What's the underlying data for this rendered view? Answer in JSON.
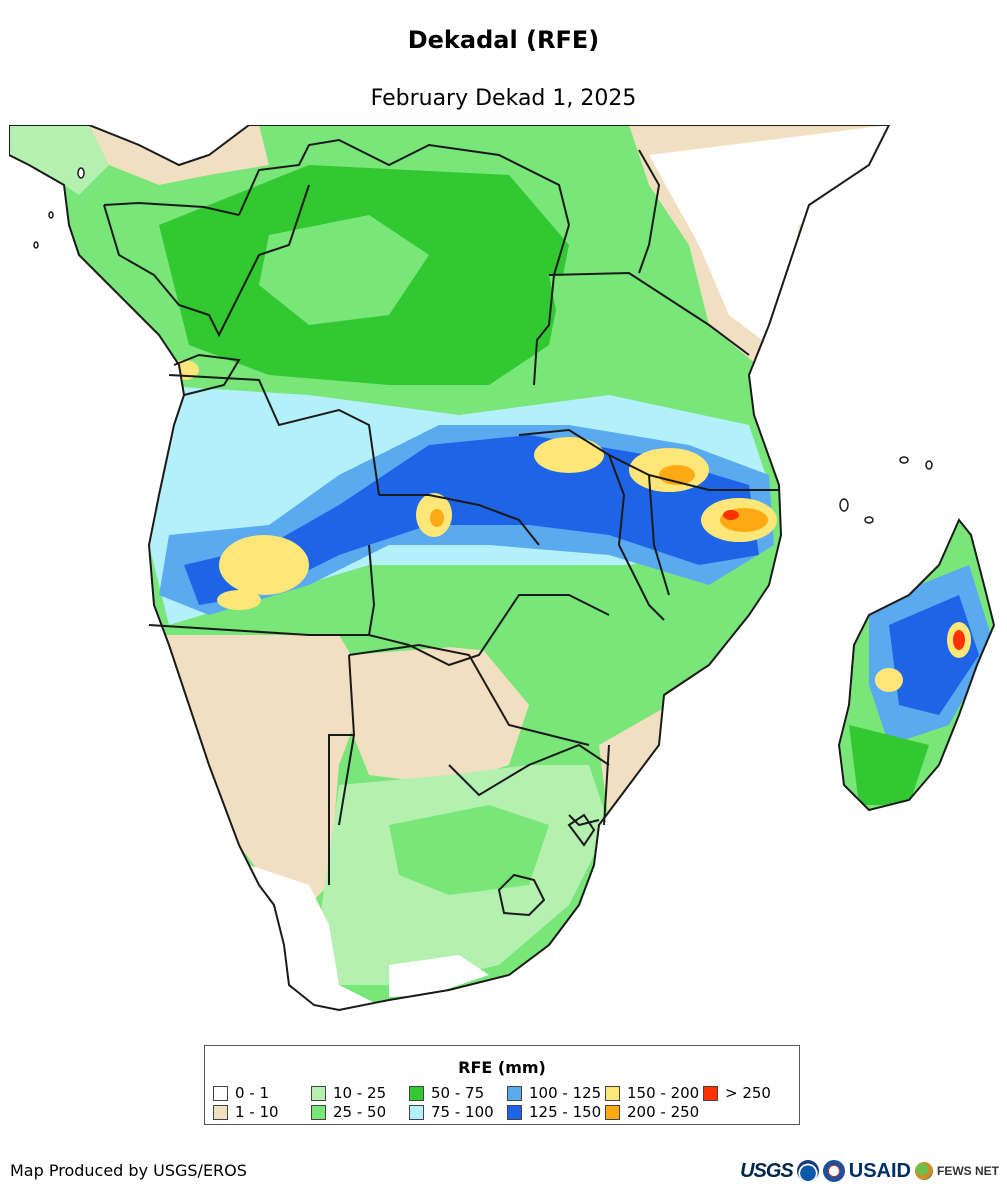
{
  "header": {
    "title": "Dekadal (RFE)",
    "subtitle": "February Dekad 1, 2025"
  },
  "map": {
    "colors": {
      "ocean": "#ffffff",
      "border": "#1a1a1a"
    }
  },
  "legend": {
    "title": "RFE (mm)",
    "items": [
      {
        "label": "0 - 1",
        "color": "#ffffff"
      },
      {
        "label": "1 - 10",
        "color": "#f0dfc0"
      },
      {
        "label": "10 - 25",
        "color": "#b4f0b0"
      },
      {
        "label": "25 - 50",
        "color": "#78e678"
      },
      {
        "label": "50 - 75",
        "color": "#32c832"
      },
      {
        "label": "75 - 100",
        "color": "#b4f0fa"
      },
      {
        "label": "100 - 125",
        "color": "#5aaaf0"
      },
      {
        "label": "125 - 150",
        "color": "#1e64e6"
      },
      {
        "label": "150 - 200",
        "color": "#ffe678"
      },
      {
        "label": "200 - 250",
        "color": "#ffaa14"
      },
      {
        "label": "> 250",
        "color": "#ff3200"
      }
    ]
  },
  "footer": {
    "credit": "Map Produced by USGS/EROS",
    "logos": {
      "usgs": "USGS",
      "usaid": "USAID",
      "fews": "FEWS NET"
    }
  }
}
